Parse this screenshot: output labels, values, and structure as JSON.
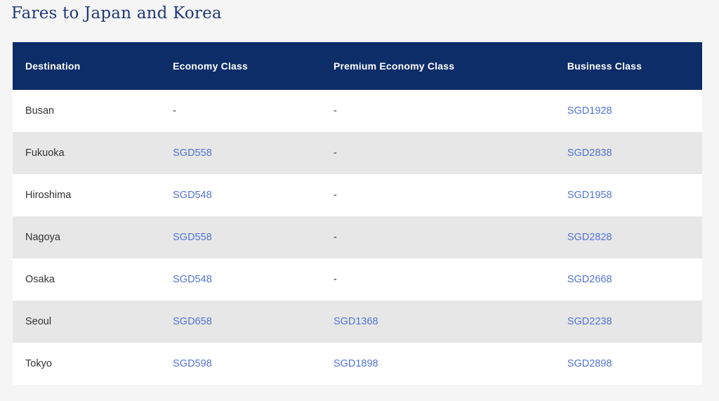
{
  "page": {
    "title": "Fares to Japan and Korea"
  },
  "colors": {
    "header_background": "#0d2d69",
    "header_text": "#ffffff",
    "link_blue": "#5373d4",
    "zebra_row": "#e7e7e7",
    "page_background": "#f5f5f6",
    "title_navy": "#233876",
    "body_text": "#333333"
  },
  "table": {
    "columns": [
      "Destination",
      "Economy Class",
      "Premium Economy Class",
      "Business Class"
    ],
    "rows": [
      {
        "cells": [
          "Busan",
          "-",
          "-",
          "SGD1928"
        ]
      },
      {
        "cells": [
          "Fukuoka",
          "SGD558",
          "-",
          "SGD2838"
        ]
      },
      {
        "cells": [
          "Hiroshima",
          "SGD548",
          "-",
          "SGD1958"
        ]
      },
      {
        "cells": [
          "Nagoya",
          "SGD558",
          "-",
          "SGD2828"
        ]
      },
      {
        "cells": [
          "Osaka",
          "SGD548",
          "-",
          "SGD2668"
        ]
      },
      {
        "cells": [
          "Seoul",
          "SGD658",
          "SGD1368",
          "SGD2238"
        ]
      },
      {
        "cells": [
          "Tokyo",
          "SGD598",
          "SGD1898",
          "SGD2898"
        ]
      }
    ]
  }
}
